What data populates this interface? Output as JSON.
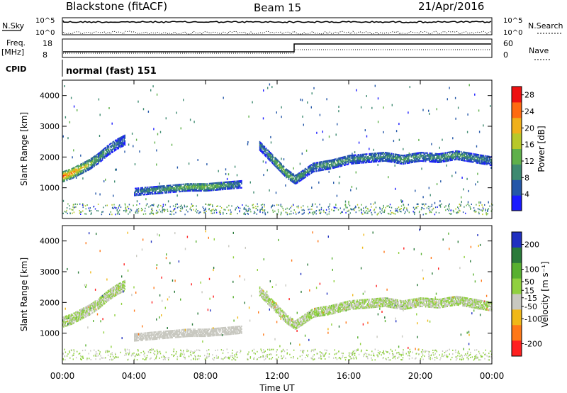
{
  "header": {
    "title": "Blackstone (fitACF)",
    "beam": "Beam 15",
    "date": "21/Apr/2016"
  },
  "top_panels": {
    "nsky_label": "N.Sky",
    "nsearch_label": "N.Search",
    "nsky_ticks": [
      "10^5",
      "10^0"
    ],
    "nsearch_ticks": [
      "10^5",
      "10^0"
    ],
    "freq_label": "Freq.",
    "freq_unit": "[MHz]",
    "freq_ticks": [
      "18",
      "8"
    ],
    "nave_label": "Nave",
    "nave_ticks": [
      "60",
      "0"
    ],
    "cpid_label": "CPID",
    "cpid_value": "normal (fast) 151"
  },
  "chart_data": [
    {
      "type": "heatmap",
      "title": "",
      "ylabel": "Slant Range [km]",
      "xlabel": "",
      "xlim": [
        "00:00",
        "24:00"
      ],
      "ylim": [
        0,
        4500
      ],
      "yticks": [
        "1000",
        "2000",
        "3000",
        "4000"
      ],
      "colorbar_label": "Power [dB]",
      "colorbar_ticks": [
        "4",
        "8",
        "12",
        "16",
        "20",
        "24",
        "28"
      ],
      "colorbar_range": [
        0,
        30
      ],
      "colors": [
        "#1a1aff",
        "#2457a8",
        "#3e8a70",
        "#5fb04a",
        "#b8c82a",
        "#f0b01a",
        "#ff6a10",
        "#ee1010"
      ],
      "bands": [
        {
          "name": "band-early",
          "hours": [
            0.0,
            0.5,
            1.0,
            1.5,
            2.0,
            2.5,
            3.0,
            3.5
          ],
          "range_km": [
            1400,
            1500,
            1650,
            1800,
            2000,
            2250,
            2450,
            2600
          ],
          "width_km": 350,
          "power_db": [
            26,
            24,
            20,
            16,
            12,
            10,
            8,
            6
          ]
        },
        {
          "name": "band-midday",
          "hours": [
            4.0,
            5.0,
            6.0,
            7.0,
            8.0,
            9.0,
            10.0
          ],
          "range_km": [
            900,
            950,
            1000,
            1050,
            1050,
            1100,
            1150
          ],
          "width_km": 250,
          "power_db": [
            8,
            10,
            12,
            14,
            16,
            12,
            8
          ]
        },
        {
          "name": "band-afternoon",
          "hours": [
            11.0,
            11.5,
            12.0,
            12.5,
            13.0,
            14.0,
            15.0,
            16.0,
            17.0,
            18.0,
            19.0,
            20.0,
            21.0,
            22.0,
            23.0,
            24.0
          ],
          "range_km": [
            2400,
            2100,
            1800,
            1500,
            1300,
            1700,
            1800,
            1950,
            2000,
            2050,
            1950,
            2050,
            2000,
            2100,
            2000,
            1900
          ],
          "width_km": 300,
          "power_db": [
            8,
            10,
            16,
            14,
            12,
            10,
            12,
            10,
            10,
            10,
            12,
            10,
            10,
            12,
            10,
            8
          ]
        }
      ]
    },
    {
      "type": "heatmap",
      "title": "",
      "ylabel": "Slant Range [km]",
      "xlabel": "Time UT",
      "xlim": [
        "00:00",
        "24:00"
      ],
      "xticks": [
        "00:00",
        "04:00",
        "08:00",
        "12:00",
        "16:00",
        "20:00",
        "00:00"
      ],
      "ylim": [
        0,
        4500
      ],
      "yticks": [
        "1000",
        "2000",
        "3000",
        "4000"
      ],
      "colorbar_label": "Velocity [m s⁻¹]",
      "colorbar_ticks": [
        "200",
        "100",
        "50",
        "15",
        "-15",
        "-50",
        "-100",
        "-200"
      ],
      "colorbar_range": [
        -250,
        250
      ],
      "colors": [
        "#2030c0",
        "#2a7a3a",
        "#58b030",
        "#90d040",
        "#c8c8c0",
        "#f0b818",
        "#ff7818",
        "#ff2020"
      ],
      "dominant_color": "#c8c8c0",
      "highlight": {
        "name": "midday-negative",
        "hours": [
          4.0,
          10.0
        ],
        "range_km": [
          700,
          1300
        ],
        "velocity": -40
      }
    }
  ]
}
